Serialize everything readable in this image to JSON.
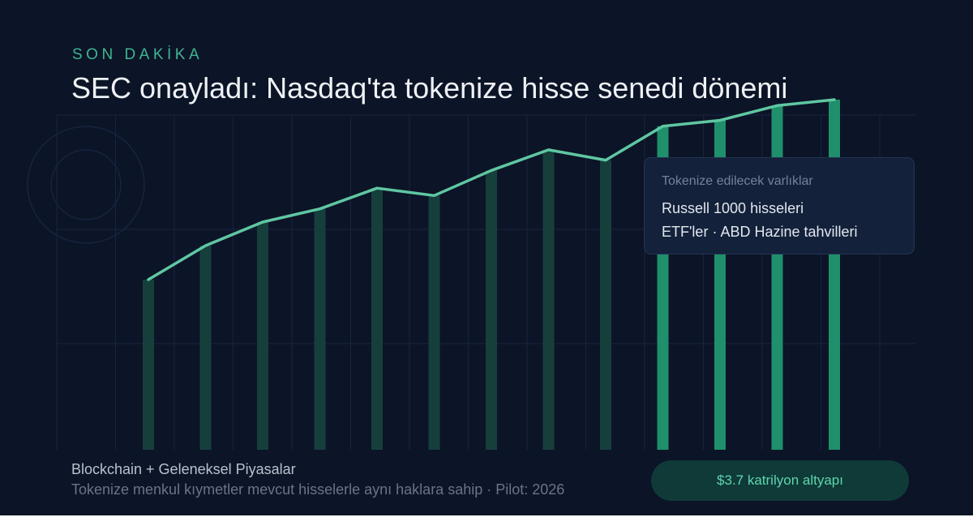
{
  "kicker": "SON DAKİKA",
  "headline": "SEC onayladı: Nasdaq'ta tokenize hisse senedi dönemi",
  "info_card": {
    "title": "Tokenize edilecek varlıklar",
    "lines": [
      "Russell 1000 hisseleri",
      "ETF'ler · ABD Hazine tahvilleri"
    ]
  },
  "footer": {
    "title": "Blockchain + Geleneksel Piyasalar",
    "subtitle": "Tokenize menkul kıymetler mevcut hisselerle aynı haklara sahip · Pilot: 2026"
  },
  "cta": {
    "label": "$3.7 katrilyon altyapı"
  },
  "colors": {
    "background": "#0c1427",
    "accent": "#3fb592",
    "line": "#5fc7a2",
    "bar_dark": "#163f3c",
    "bar_bright": "#1f8f6c"
  },
  "chart_data": {
    "type": "bar",
    "values": [
      100,
      123,
      139,
      148,
      162,
      157,
      174,
      188,
      181,
      204,
      208,
      218,
      222
    ],
    "line_values": [
      100,
      123,
      139,
      148,
      162,
      157,
      174,
      188,
      181,
      204,
      208,
      218,
      222
    ],
    "highlight_from_index": 9,
    "grid": true
  }
}
